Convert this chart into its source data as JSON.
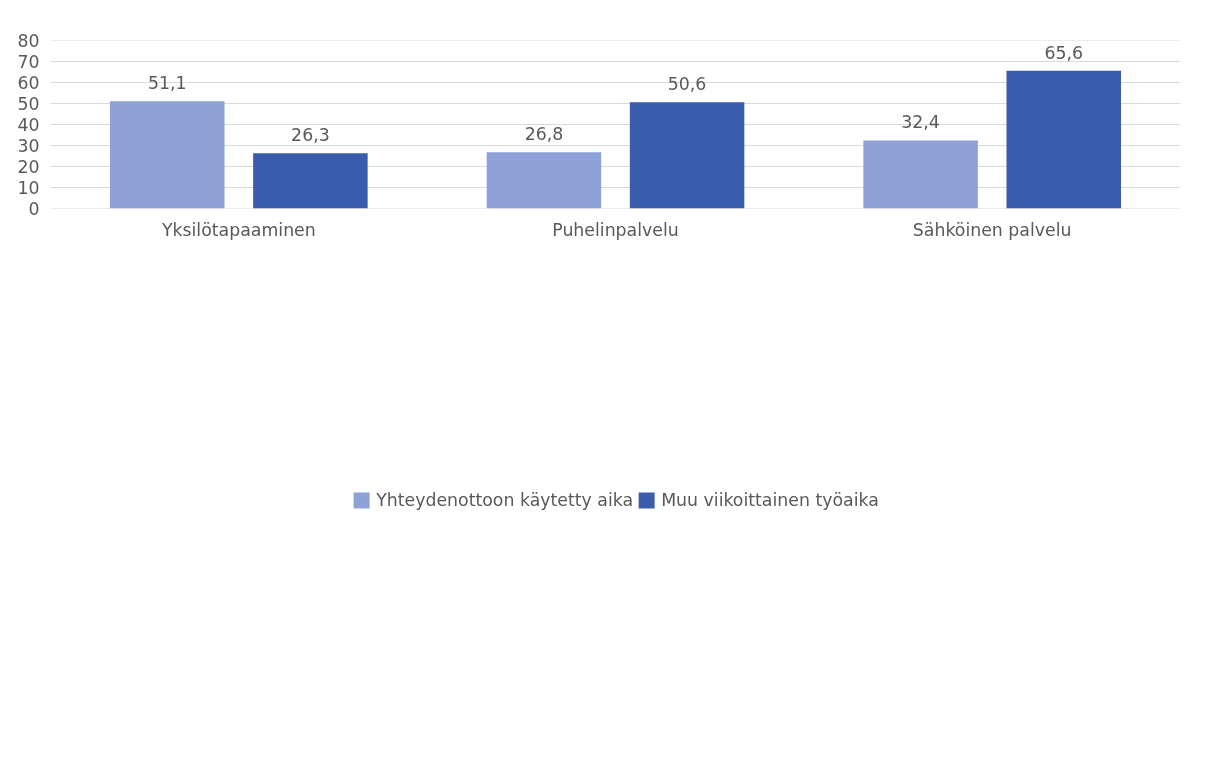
{
  "chart_data": {
    "type": "bar",
    "categories": [
      "Yksilötapaaminen",
      "Puhelinpalvelu",
      "Sähköinen palvelu"
    ],
    "series": [
      {
        "name": "Yhteydenottoon käytetty aika",
        "color": "#8ea2d8",
        "values": [
          51.1,
          26.8,
          32.4
        ],
        "value_labels": [
          "51,1",
          "26,8",
          "32,4"
        ]
      },
      {
        "name": "Muu viikoittainen työaika",
        "color": "#3a5cad",
        "values": [
          26.3,
          50.6,
          65.6
        ],
        "value_labels": [
          "26,3",
          "50,6",
          "65,6"
        ]
      }
    ],
    "ylim": [
      0,
      80
    ],
    "yticks": [
      0,
      10,
      20,
      30,
      40,
      50,
      60,
      70,
      80
    ],
    "grid": "y",
    "legend": "bottom"
  }
}
